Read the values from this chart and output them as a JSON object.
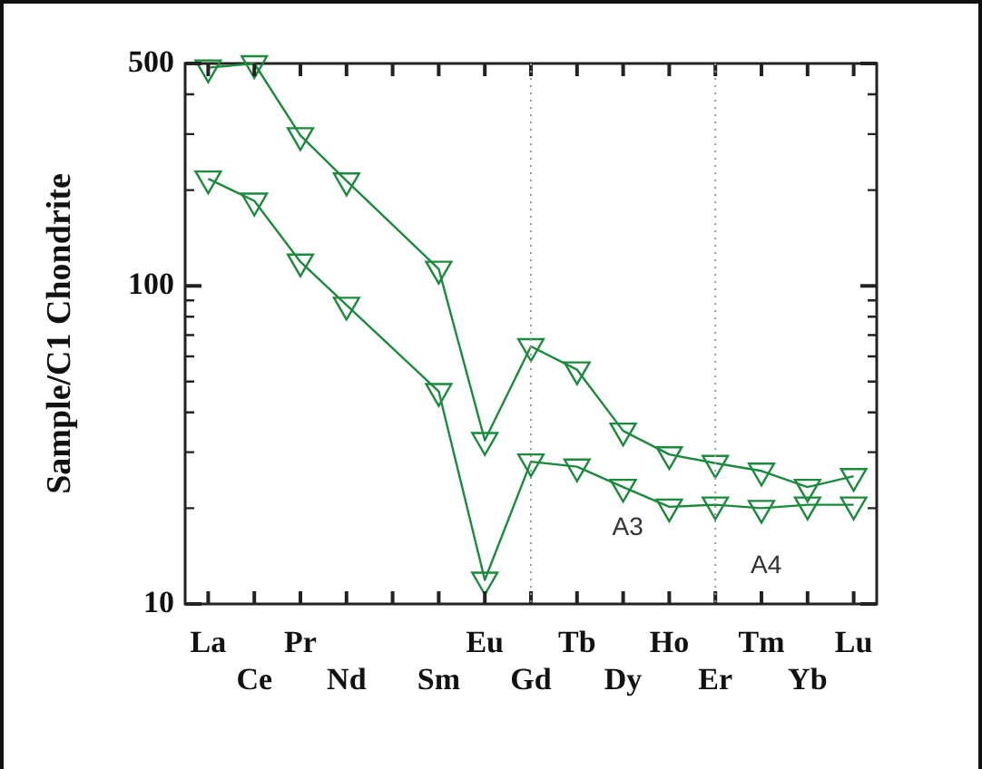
{
  "chart_data": {
    "type": "line",
    "ylabel": "Sample/C1 Chondrite",
    "categories": [
      "La",
      "Ce",
      "Pr",
      "Nd",
      null,
      "Sm",
      "Eu",
      "Gd",
      "Tb",
      "Dy",
      "Ho",
      "Er",
      "Tm",
      "Yb",
      "Lu"
    ],
    "series": [
      {
        "color": "#1a8a3c",
        "values": [
          485,
          500,
          297,
          214,
          null,
          113,
          32.7,
          64.5,
          54.5,
          35,
          29.5,
          27.7,
          26.2,
          23.3,
          25.2
        ]
      },
      {
        "color": "#1a8a3c",
        "values": [
          217,
          185,
          119,
          87,
          null,
          46.6,
          11.9,
          28,
          27,
          23.3,
          20.2,
          20.5,
          20,
          20.5,
          20.5
        ]
      }
    ],
    "log": "y",
    "ylim": [
      10,
      500
    ],
    "yticks": [
      10,
      {
        "value": 20,
        "label": null
      },
      {
        "value": 30,
        "label": null
      },
      {
        "value": 40,
        "label": null
      },
      {
        "value": 50,
        "label": null
      },
      {
        "value": 60,
        "label": null
      },
      {
        "value": 70,
        "label": null
      },
      {
        "value": 80,
        "label": null
      },
      {
        "value": 90,
        "label": null
      },
      100,
      {
        "value": 200,
        "label": null
      },
      {
        "value": 300,
        "label": null
      },
      {
        "value": 400,
        "label": null
      },
      500
    ],
    "marker": "triangle",
    "line_style": "solid",
    "grid": false,
    "legend": false,
    "ref_lines": [
      {
        "axis": "x",
        "value": "Gd",
        "color": "#999999",
        "line_style": "dotted"
      },
      {
        "axis": "x",
        "value": "Er",
        "color": "#999999",
        "line_style": "dotted"
      }
    ],
    "annotations": [
      "A3",
      "A4"
    ]
  }
}
